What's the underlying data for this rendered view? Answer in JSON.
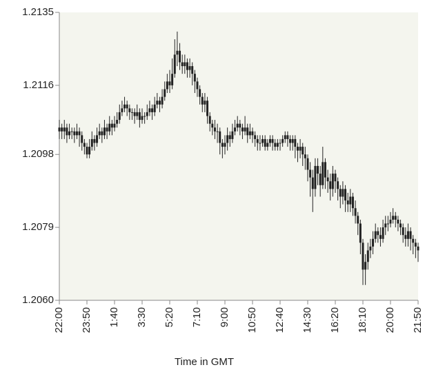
{
  "chart_data": {
    "type": "candlestick",
    "x_label": "Time in GMT",
    "color": "#222222",
    "background": "#f4f5ee",
    "categories": [
      "22:00",
      null,
      null,
      null,
      null,
      null,
      null,
      null,
      null,
      null,
      null,
      "23:50",
      null,
      null,
      null,
      null,
      null,
      null,
      null,
      null,
      null,
      null,
      "1:40",
      null,
      null,
      null,
      null,
      null,
      null,
      null,
      null,
      null,
      null,
      "3:30",
      null,
      null,
      null,
      null,
      null,
      null,
      null,
      null,
      null,
      null,
      "5:20",
      null,
      null,
      null,
      null,
      null,
      null,
      null,
      null,
      null,
      null,
      "7:10",
      null,
      null,
      null,
      null,
      null,
      null,
      null,
      null,
      null,
      null,
      "9:00",
      null,
      null,
      null,
      null,
      null,
      null,
      null,
      null,
      null,
      null,
      "10:50",
      null,
      null,
      null,
      null,
      null,
      null,
      null,
      null,
      null,
      null,
      "12:40",
      null,
      null,
      null,
      null,
      null,
      null,
      null,
      null,
      null,
      null,
      "14:30",
      null,
      null,
      null,
      null,
      null,
      null,
      null,
      null,
      null,
      null,
      "16:20",
      null,
      null,
      null,
      null,
      null,
      null,
      null,
      null,
      null,
      null,
      "18:10",
      null,
      null,
      null,
      null,
      null,
      null,
      null,
      null,
      null,
      null,
      "20:00",
      null,
      null,
      null,
      null,
      null,
      null,
      null,
      null,
      null,
      null,
      "21:50"
    ],
    "open": [
      1.2104,
      1.2105,
      1.2104,
      1.2105,
      1.2103,
      1.2104,
      1.2104,
      1.2103,
      1.2104,
      1.2103,
      1.2101,
      1.21,
      1.2098,
      1.21,
      1.2102,
      1.2101,
      1.2103,
      1.2104,
      1.2103,
      1.2105,
      1.2104,
      1.2106,
      1.2105,
      1.2106,
      1.2107,
      1.2109,
      1.211,
      1.2111,
      1.211,
      1.2109,
      1.2109,
      1.2108,
      1.2109,
      1.2107,
      1.2108,
      1.2108,
      1.2109,
      1.211,
      1.2109,
      1.2111,
      1.2112,
      1.2111,
      1.2113,
      1.2115,
      1.2117,
      1.2116,
      1.2119,
      1.2124,
      1.2125,
      1.2122,
      1.2121,
      1.2122,
      1.212,
      1.2121,
      1.2119,
      1.2117,
      1.2115,
      1.2113,
      1.2111,
      1.2112,
      1.2108,
      1.2106,
      1.2105,
      1.2104,
      1.2104,
      1.2101,
      1.21,
      1.2101,
      1.2103,
      1.2102,
      1.2104,
      1.2105,
      1.2106,
      1.2105,
      1.2104,
      1.2105,
      1.2103,
      1.2104,
      1.2103,
      1.2102,
      1.2101,
      1.2101,
      1.2102,
      1.21,
      1.2101,
      1.2102,
      1.2101,
      1.21,
      1.2101,
      1.2101,
      1.2102,
      1.2103,
      1.2102,
      1.2101,
      1.2102,
      1.21,
      1.2099,
      1.21,
      1.2098,
      1.2097,
      1.2094,
      1.2092,
      1.2089,
      1.2095,
      1.2093,
      1.209,
      1.2096,
      1.2092,
      1.2091,
      1.2089,
      1.2093,
      1.2091,
      1.2089,
      1.2087,
      1.2089,
      1.2086,
      1.2085,
      1.2087,
      1.2084,
      1.2082,
      1.208,
      1.2075,
      1.2068,
      1.207,
      1.2073,
      1.2074,
      1.2076,
      1.2078,
      1.2077,
      1.2076,
      1.2079,
      1.208,
      1.208,
      1.2081,
      1.2082,
      1.2081,
      1.208,
      1.2079,
      1.2077,
      1.2076,
      1.2078,
      1.2076,
      1.2075,
      1.2074
    ],
    "high": [
      1.2107,
      1.2106,
      1.2107,
      1.2106,
      1.2106,
      1.2105,
      1.2105,
      1.2106,
      1.2105,
      1.2104,
      1.2102,
      1.2101,
      1.2102,
      1.2104,
      1.2103,
      1.2105,
      1.2106,
      1.2105,
      1.2107,
      1.2106,
      1.2108,
      1.2107,
      1.2108,
      1.2109,
      1.2111,
      1.2112,
      1.2113,
      1.2112,
      1.2111,
      1.211,
      1.211,
      1.2111,
      1.211,
      1.211,
      1.2109,
      1.2111,
      1.2112,
      1.2111,
      1.2113,
      1.2114,
      1.2113,
      1.2115,
      1.2117,
      1.2119,
      1.212,
      1.2123,
      1.2128,
      1.213,
      1.2127,
      1.2124,
      1.2124,
      1.2123,
      1.2123,
      1.2122,
      1.212,
      1.2118,
      1.2116,
      1.2114,
      1.2114,
      1.2113,
      1.2109,
      1.2107,
      1.2107,
      1.2106,
      1.2105,
      1.2102,
      1.2103,
      1.2105,
      1.2104,
      1.2106,
      1.2107,
      1.2108,
      1.2107,
      1.2106,
      1.2108,
      1.2106,
      1.2106,
      1.2105,
      1.2104,
      1.2103,
      1.2103,
      1.2103,
      1.2103,
      1.2102,
      1.2103,
      1.2103,
      1.2102,
      1.2102,
      1.2102,
      1.2103,
      1.2104,
      1.2104,
      1.2103,
      1.2103,
      1.2103,
      1.2101,
      1.2102,
      1.2101,
      1.21,
      1.2098,
      1.2096,
      1.2094,
      1.2097,
      1.2097,
      1.2095,
      1.21,
      1.2097,
      1.2094,
      1.2093,
      1.2095,
      1.2094,
      1.2092,
      1.209,
      1.2091,
      1.209,
      1.2088,
      1.2089,
      1.2088,
      1.2086,
      1.2083,
      1.2081,
      1.2076,
      1.2072,
      1.2075,
      1.2076,
      1.2078,
      1.208,
      1.2079,
      1.2079,
      1.2081,
      1.2082,
      1.2082,
      1.2083,
      1.2084,
      1.2083,
      1.2082,
      1.2081,
      1.208,
      1.2079,
      1.208,
      1.2079,
      1.2077,
      1.2076,
      1.2075
    ],
    "low": [
      1.2102,
      1.2102,
      1.2102,
      1.2101,
      1.2102,
      1.2102,
      1.2101,
      1.2102,
      1.21,
      1.2099,
      1.2098,
      1.2097,
      1.2097,
      1.2099,
      1.2099,
      1.21,
      1.2102,
      1.2101,
      1.2102,
      1.2102,
      1.2103,
      1.2103,
      1.2104,
      1.2105,
      1.2106,
      1.2108,
      1.2109,
      1.2108,
      1.2107,
      1.2107,
      1.2106,
      1.2107,
      1.2105,
      1.2106,
      1.2106,
      1.2107,
      1.2108,
      1.2107,
      1.2108,
      1.211,
      1.2109,
      1.211,
      1.2112,
      1.2114,
      1.2114,
      1.2115,
      1.2118,
      1.2121,
      1.212,
      1.2119,
      1.2119,
      1.2118,
      1.2118,
      1.2116,
      1.2114,
      1.2113,
      1.2111,
      1.2109,
      1.2109,
      1.2106,
      1.2104,
      1.2103,
      1.2102,
      1.2101,
      1.2098,
      1.2097,
      1.2098,
      1.2099,
      1.21,
      1.2101,
      1.2103,
      1.2104,
      1.2103,
      1.2102,
      1.2103,
      1.2101,
      1.2102,
      1.2101,
      1.21,
      1.2099,
      1.2099,
      1.21,
      1.2099,
      1.2099,
      1.21,
      1.2099,
      1.2099,
      1.2099,
      1.2099,
      1.21,
      1.2101,
      1.21,
      1.2099,
      1.2099,
      1.2097,
      1.2096,
      1.2097,
      1.2095,
      1.2094,
      1.2091,
      1.2087,
      1.2083,
      1.2087,
      1.209,
      1.2087,
      1.2089,
      1.2089,
      1.2088,
      1.2086,
      1.2087,
      1.2088,
      1.2086,
      1.2084,
      1.2085,
      1.2083,
      1.2083,
      1.2083,
      1.2082,
      1.208,
      1.2077,
      1.2072,
      1.2064,
      1.2064,
      1.2068,
      1.2071,
      1.2072,
      1.2075,
      1.2075,
      1.2074,
      1.2075,
      1.2077,
      1.2078,
      1.2079,
      1.208,
      1.2079,
      1.2078,
      1.2077,
      1.2075,
      1.2074,
      1.2074,
      1.2073,
      1.2072,
      1.2071,
      1.207
    ],
    "close": [
      1.2105,
      1.2104,
      1.2105,
      1.2103,
      1.2104,
      1.2104,
      1.2103,
      1.2104,
      1.2103,
      1.2101,
      1.21,
      1.2098,
      1.21,
      1.2102,
      1.2101,
      1.2103,
      1.2104,
      1.2103,
      1.2105,
      1.2104,
      1.2106,
      1.2105,
      1.2106,
      1.2107,
      1.2109,
      1.211,
      1.2111,
      1.211,
      1.2109,
      1.2109,
      1.2108,
      1.2109,
      1.2107,
      1.2108,
      1.2108,
      1.2109,
      1.211,
      1.2109,
      1.2111,
      1.2112,
      1.2111,
      1.2113,
      1.2115,
      1.2117,
      1.2116,
      1.2119,
      1.2124,
      1.2125,
      1.2122,
      1.2121,
      1.2122,
      1.212,
      1.2121,
      1.2119,
      1.2117,
      1.2115,
      1.2113,
      1.2111,
      1.2112,
      1.2108,
      1.2106,
      1.2105,
      1.2104,
      1.2104,
      1.2101,
      1.21,
      1.2101,
      1.2103,
      1.2102,
      1.2104,
      1.2105,
      1.2106,
      1.2105,
      1.2104,
      1.2105,
      1.2103,
      1.2104,
      1.2103,
      1.2102,
      1.2101,
      1.2101,
      1.2102,
      1.21,
      1.2101,
      1.2102,
      1.2101,
      1.21,
      1.2101,
      1.2101,
      1.2102,
      1.2103,
      1.2102,
      1.2101,
      1.2102,
      1.21,
      1.2099,
      1.21,
      1.2098,
      1.2097,
      1.2094,
      1.2092,
      1.2089,
      1.2095,
      1.2093,
      1.209,
      1.2096,
      1.2092,
      1.2091,
      1.2089,
      1.2093,
      1.2091,
      1.2089,
      1.2087,
      1.2089,
      1.2086,
      1.2085,
      1.2087,
      1.2084,
      1.2082,
      1.208,
      1.2075,
      1.2068,
      1.207,
      1.2073,
      1.2074,
      1.2076,
      1.2078,
      1.2077,
      1.2076,
      1.2079,
      1.208,
      1.208,
      1.2081,
      1.2082,
      1.2081,
      1.208,
      1.2079,
      1.2077,
      1.2076,
      1.2078,
      1.2076,
      1.2075,
      1.2074,
      1.2073
    ],
    "ylim": [
      1.206,
      1.2135
    ],
    "yticks": [
      {
        "value": 1.206,
        "label": "1.2060"
      },
      1.2079,
      1.2098,
      1.2116,
      1.2135
    ]
  }
}
